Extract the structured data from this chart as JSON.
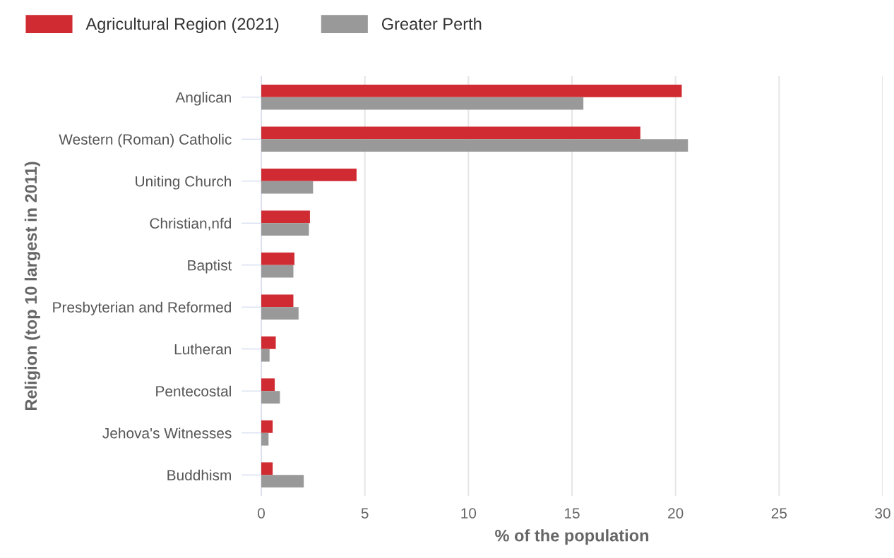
{
  "chart_data": {
    "type": "bar",
    "orientation": "horizontal",
    "categories": [
      "Anglican",
      "Western (Roman) Catholic",
      "Uniting Church",
      "Christian,nfd",
      "Baptist",
      "Presbyterian and Reformed",
      "Lutheran",
      "Pentecostal",
      "Jehova's Witnesses",
      "Buddhism"
    ],
    "series": [
      {
        "name": "Agricultural Region (2021)",
        "color": "#d02b32",
        "values": [
          20.3,
          18.3,
          4.6,
          2.35,
          1.6,
          1.55,
          0.7,
          0.65,
          0.55,
          0.55
        ]
      },
      {
        "name": "Greater Perth",
        "color": "#999999",
        "values": [
          15.55,
          20.6,
          2.5,
          2.3,
          1.55,
          1.8,
          0.4,
          0.9,
          0.35,
          2.05
        ]
      }
    ],
    "xlim": [
      0,
      30
    ],
    "xticks": [
      0,
      5,
      10,
      15,
      20,
      25,
      30
    ],
    "xlabel": "% of the population",
    "ylabel": "Religion (top 10 largest in 2011)",
    "grid": "x",
    "legend": "top left"
  }
}
